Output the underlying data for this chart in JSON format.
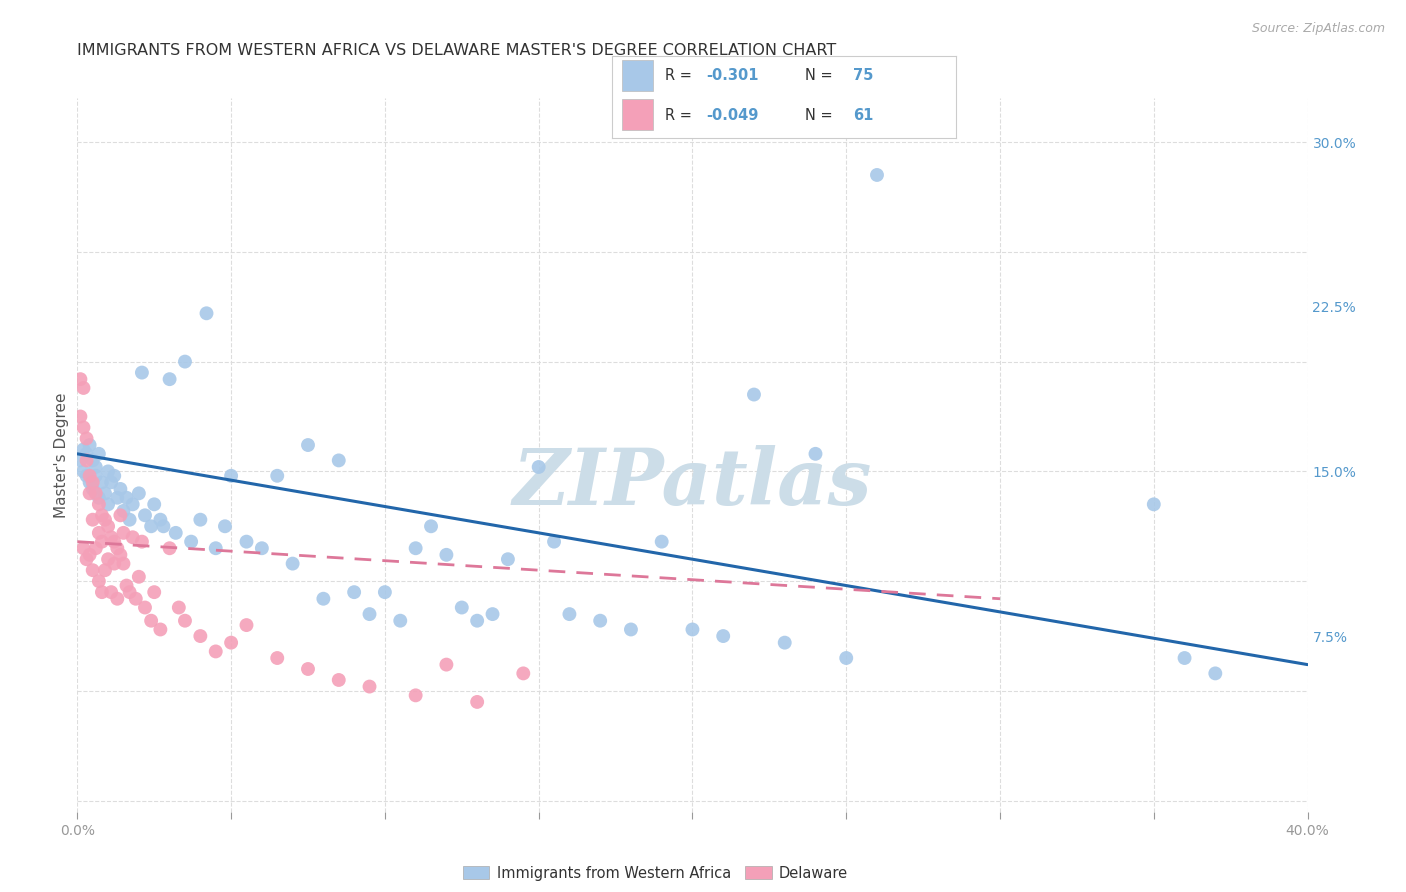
{
  "title": "IMMIGRANTS FROM WESTERN AFRICA VS DELAWARE MASTER'S DEGREE CORRELATION CHART",
  "source": "Source: ZipAtlas.com",
  "ylabel": "Master's Degree",
  "xlim": [
    0.0,
    0.4
  ],
  "ylim": [
    -0.005,
    0.32
  ],
  "xticks": [
    0.0,
    0.05,
    0.1,
    0.15,
    0.2,
    0.25,
    0.3,
    0.35,
    0.4
  ],
  "xticklabels": [
    "0.0%",
    "",
    "",
    "",
    "",
    "",
    "",
    "",
    "40.0%"
  ],
  "yticks_right": [
    0.075,
    0.15,
    0.225,
    0.3
  ],
  "yticklabels_right": [
    "7.5%",
    "15.0%",
    "22.5%",
    "30.0%"
  ],
  "color_blue": "#a8c8e8",
  "color_pink": "#f4a0b8",
  "watermark": "ZIPatlas",
  "blue_scatter_x": [
    0.001,
    0.002,
    0.002,
    0.003,
    0.003,
    0.004,
    0.004,
    0.005,
    0.005,
    0.006,
    0.006,
    0.007,
    0.007,
    0.008,
    0.009,
    0.01,
    0.01,
    0.011,
    0.012,
    0.013,
    0.014,
    0.015,
    0.016,
    0.017,
    0.018,
    0.02,
    0.021,
    0.022,
    0.024,
    0.025,
    0.027,
    0.028,
    0.03,
    0.032,
    0.035,
    0.037,
    0.04,
    0.042,
    0.045,
    0.048,
    0.05,
    0.055,
    0.06,
    0.065,
    0.07,
    0.075,
    0.08,
    0.085,
    0.09,
    0.095,
    0.1,
    0.105,
    0.11,
    0.115,
    0.12,
    0.125,
    0.13,
    0.135,
    0.14,
    0.15,
    0.155,
    0.16,
    0.17,
    0.18,
    0.19,
    0.2,
    0.21,
    0.22,
    0.23,
    0.24,
    0.25,
    0.26,
    0.35,
    0.36,
    0.37
  ],
  "blue_scatter_y": [
    0.155,
    0.16,
    0.15,
    0.158,
    0.148,
    0.162,
    0.145,
    0.155,
    0.142,
    0.152,
    0.148,
    0.158,
    0.138,
    0.145,
    0.14,
    0.15,
    0.135,
    0.145,
    0.148,
    0.138,
    0.142,
    0.132,
    0.138,
    0.128,
    0.135,
    0.14,
    0.195,
    0.13,
    0.125,
    0.135,
    0.128,
    0.125,
    0.192,
    0.122,
    0.2,
    0.118,
    0.128,
    0.222,
    0.115,
    0.125,
    0.148,
    0.118,
    0.115,
    0.148,
    0.108,
    0.162,
    0.092,
    0.155,
    0.095,
    0.085,
    0.095,
    0.082,
    0.115,
    0.125,
    0.112,
    0.088,
    0.082,
    0.085,
    0.11,
    0.152,
    0.118,
    0.085,
    0.082,
    0.078,
    0.118,
    0.078,
    0.075,
    0.185,
    0.072,
    0.158,
    0.065,
    0.285,
    0.135,
    0.065,
    0.058
  ],
  "pink_scatter_x": [
    0.001,
    0.001,
    0.002,
    0.002,
    0.002,
    0.003,
    0.003,
    0.003,
    0.004,
    0.004,
    0.004,
    0.005,
    0.005,
    0.005,
    0.006,
    0.006,
    0.007,
    0.007,
    0.007,
    0.008,
    0.008,
    0.008,
    0.009,
    0.009,
    0.01,
    0.01,
    0.011,
    0.011,
    0.012,
    0.012,
    0.013,
    0.013,
    0.014,
    0.014,
    0.015,
    0.015,
    0.016,
    0.017,
    0.018,
    0.019,
    0.02,
    0.021,
    0.022,
    0.024,
    0.025,
    0.027,
    0.03,
    0.033,
    0.035,
    0.04,
    0.045,
    0.05,
    0.055,
    0.065,
    0.075,
    0.085,
    0.095,
    0.11,
    0.12,
    0.13,
    0.145
  ],
  "pink_scatter_y": [
    0.192,
    0.175,
    0.188,
    0.17,
    0.115,
    0.165,
    0.155,
    0.11,
    0.148,
    0.14,
    0.112,
    0.145,
    0.128,
    0.105,
    0.14,
    0.115,
    0.135,
    0.122,
    0.1,
    0.13,
    0.118,
    0.095,
    0.128,
    0.105,
    0.125,
    0.11,
    0.12,
    0.095,
    0.118,
    0.108,
    0.115,
    0.092,
    0.112,
    0.13,
    0.108,
    0.122,
    0.098,
    0.095,
    0.12,
    0.092,
    0.102,
    0.118,
    0.088,
    0.082,
    0.095,
    0.078,
    0.115,
    0.088,
    0.082,
    0.075,
    0.068,
    0.072,
    0.08,
    0.065,
    0.06,
    0.055,
    0.052,
    0.048,
    0.062,
    0.045,
    0.058
  ],
  "blue_line_x": [
    0.0,
    0.4
  ],
  "blue_line_y": [
    0.158,
    0.062
  ],
  "pink_line_x": [
    0.0,
    0.3
  ],
  "pink_line_y": [
    0.118,
    0.092
  ],
  "background_color": "#ffffff",
  "grid_color": "#dddddd",
  "title_color": "#333333",
  "label_color": "#5599cc",
  "watermark_color": "#ccdde8",
  "legend_label1": "Immigrants from Western Africa",
  "legend_label2": "Delaware",
  "legend_r1_text": "R = ",
  "legend_r1_val": "-0.301",
  "legend_n1_text": "N = ",
  "legend_n1_val": "75",
  "legend_r2_text": "R = ",
  "legend_r2_val": "-0.049",
  "legend_n2_text": "N = ",
  "legend_n2_val": "61"
}
